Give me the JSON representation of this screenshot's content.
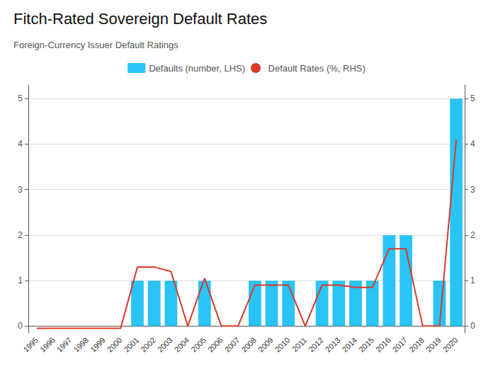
{
  "chart_data": {
    "type": "bar",
    "title": "Fitch-Rated Sovereign Default Rates",
    "subtitle": "Foreign-Currency Issuer Default Ratings",
    "categories": [
      "1995",
      "1996",
      "1997",
      "1998",
      "1999",
      "2000",
      "2001",
      "2002",
      "2003",
      "2004",
      "2005",
      "2006",
      "2007",
      "2008",
      "2009",
      "2010",
      "2011",
      "2012",
      "2013",
      "2014",
      "2015",
      "2016",
      "2017",
      "2018",
      "2019",
      "2020"
    ],
    "series": [
      {
        "name": "Defaults (number, LHS)",
        "type": "bar",
        "color": "#29c4f5",
        "values": [
          0,
          0,
          0,
          0,
          0,
          0,
          1,
          1,
          1,
          0,
          1,
          0,
          0,
          1,
          1,
          1,
          0,
          1,
          1,
          1,
          1,
          2,
          2,
          0,
          1,
          5
        ]
      },
      {
        "name": "Default Rates (%, RHS)",
        "type": "line",
        "color": "#d9392b",
        "axis": "y2",
        "values": [
          -0.05,
          -0.05,
          -0.05,
          -0.05,
          -0.05,
          -0.05,
          1.3,
          1.3,
          1.2,
          0.0,
          1.05,
          0.0,
          0.0,
          0.9,
          0.9,
          0.9,
          0.0,
          0.9,
          0.9,
          0.85,
          0.85,
          1.7,
          1.7,
          0.0,
          0.0,
          4.1
        ]
      }
    ],
    "ylim": [
      -0.15,
      5.3
    ],
    "yticks": [
      0,
      1,
      2,
      3,
      4,
      5
    ],
    "y2lim": [
      -0.15,
      5.3
    ],
    "y2ticks": [
      0,
      1,
      2,
      3,
      4,
      5
    ],
    "grid": true,
    "legend": "top"
  }
}
